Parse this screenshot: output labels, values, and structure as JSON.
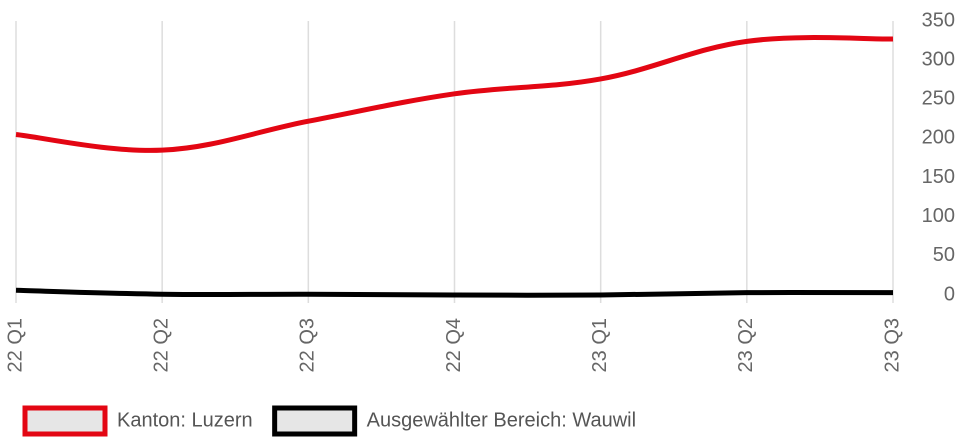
{
  "chart_data": {
    "type": "line",
    "categories": [
      "22 Q1",
      "22 Q2",
      "22 Q3",
      "22 Q4",
      "23 Q1",
      "23 Q2",
      "23 Q3"
    ],
    "series": [
      {
        "name": "Kanton: Luzern",
        "color": "#e30613",
        "values": [
          205,
          185,
          222,
          257,
          276,
          324,
          327
        ]
      },
      {
        "name": "Ausgewählter Bereich: Wauwil",
        "color": "#000000",
        "values": [
          6,
          1,
          1,
          0,
          0,
          3,
          3
        ]
      }
    ],
    "ylim": [
      0,
      350
    ],
    "yticks": [
      0,
      50,
      100,
      150,
      200,
      250,
      300,
      350
    ],
    "grid": true,
    "legend": "bottom"
  }
}
